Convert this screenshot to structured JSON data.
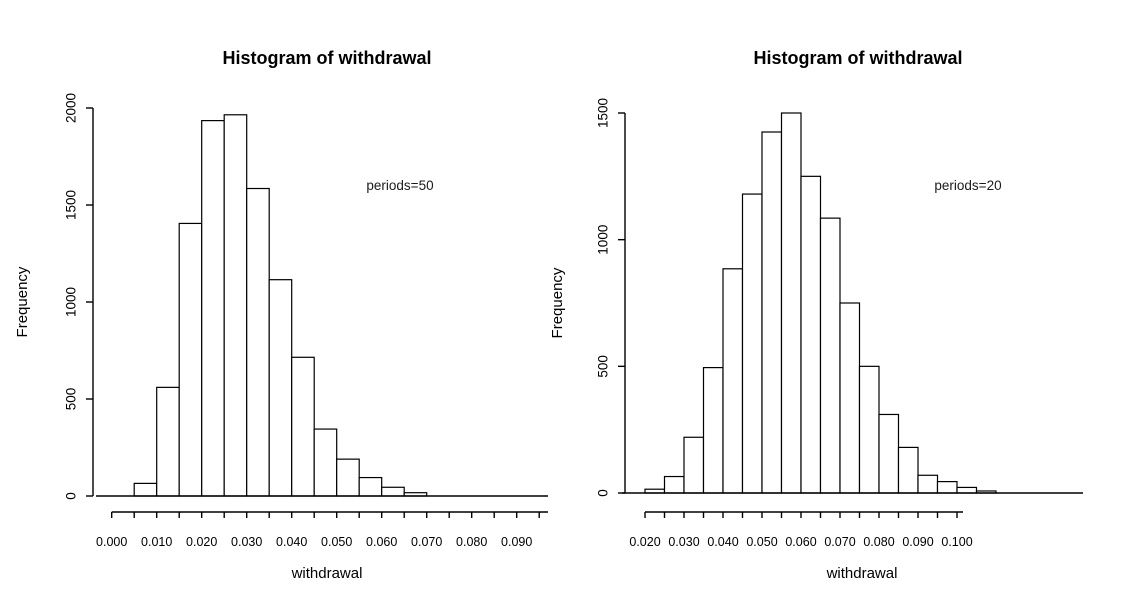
{
  "page": {
    "background": "#ffffff",
    "ink_color": "#000000"
  },
  "chart_data": [
    {
      "type": "bar",
      "subtype": "histogram",
      "title": "Histogram of withdrawal",
      "xlabel": "withdrawal",
      "ylabel": "Frequency",
      "annotation": "periods=50",
      "bin_start": 0.005,
      "bin_width": 0.005,
      "counts": [
        65,
        560,
        1405,
        1935,
        1965,
        1585,
        1115,
        715,
        345,
        190,
        95,
        45,
        17
      ],
      "bins": [
        {
          "from": 0.005,
          "to": 0.01,
          "count": 65
        },
        {
          "from": 0.01,
          "to": 0.015,
          "count": 560
        },
        {
          "from": 0.015,
          "to": 0.02,
          "count": 1405
        },
        {
          "from": 0.02,
          "to": 0.025,
          "count": 1935
        },
        {
          "from": 0.025,
          "to": 0.03,
          "count": 1965
        },
        {
          "from": 0.03,
          "to": 0.035,
          "count": 1585
        },
        {
          "from": 0.035,
          "to": 0.04,
          "count": 1115
        },
        {
          "from": 0.04,
          "to": 0.045,
          "count": 715
        },
        {
          "from": 0.045,
          "to": 0.05,
          "count": 345
        },
        {
          "from": 0.05,
          "to": 0.055,
          "count": 190
        },
        {
          "from": 0.055,
          "to": 0.06,
          "count": 95
        },
        {
          "from": 0.06,
          "to": 0.065,
          "count": 45
        },
        {
          "from": 0.065,
          "to": 0.07,
          "count": 17
        }
      ],
      "ylim": [
        0,
        2000
      ],
      "y_ticks": [
        0,
        500,
        1000,
        1500,
        2000
      ],
      "y_tick_labels": [
        "0",
        "500",
        "1000",
        "1500",
        "2000"
      ],
      "x_tick_step": 0.005,
      "x_tick_start": 0.0,
      "x_tick_end": 0.095,
      "x_tick_labels": [
        "0.000",
        "0.010",
        "0.020",
        "0.030",
        "0.040",
        "0.050",
        "0.060",
        "0.070",
        "0.080",
        "0.090"
      ],
      "bar_fill": "#ffffff",
      "bar_stroke": "#000000",
      "grid": false,
      "legend": null
    },
    {
      "type": "bar",
      "subtype": "histogram",
      "title": "Histogram of withdrawal",
      "xlabel": "withdrawal",
      "ylabel": "Frequency",
      "annotation": "periods=20",
      "bin_start": 0.02,
      "bin_width": 0.005,
      "counts": [
        15,
        65,
        220,
        495,
        885,
        1180,
        1425,
        1500,
        1250,
        1085,
        750,
        500,
        310,
        180,
        70,
        45,
        22,
        8
      ],
      "bins": [
        {
          "from": 0.02,
          "to": 0.025,
          "count": 15
        },
        {
          "from": 0.025,
          "to": 0.03,
          "count": 65
        },
        {
          "from": 0.03,
          "to": 0.035,
          "count": 220
        },
        {
          "from": 0.035,
          "to": 0.04,
          "count": 495
        },
        {
          "from": 0.04,
          "to": 0.045,
          "count": 885
        },
        {
          "from": 0.045,
          "to": 0.05,
          "count": 1180
        },
        {
          "from": 0.05,
          "to": 0.055,
          "count": 1425
        },
        {
          "from": 0.055,
          "to": 0.06,
          "count": 1500
        },
        {
          "from": 0.06,
          "to": 0.065,
          "count": 1250
        },
        {
          "from": 0.065,
          "to": 0.07,
          "count": 1085
        },
        {
          "from": 0.07,
          "to": 0.075,
          "count": 750
        },
        {
          "from": 0.075,
          "to": 0.08,
          "count": 500
        },
        {
          "from": 0.08,
          "to": 0.085,
          "count": 310
        },
        {
          "from": 0.085,
          "to": 0.09,
          "count": 180
        },
        {
          "from": 0.09,
          "to": 0.095,
          "count": 70
        },
        {
          "from": 0.095,
          "to": 0.1,
          "count": 45
        },
        {
          "from": 0.1,
          "to": 0.105,
          "count": 22
        },
        {
          "from": 0.105,
          "to": 0.11,
          "count": 8
        }
      ],
      "ylim": [
        0,
        1500
      ],
      "y_ticks": [
        0,
        500,
        1000,
        1500
      ],
      "y_tick_labels": [
        "0",
        "500",
        "1000",
        "1500"
      ],
      "x_tick_step": 0.005,
      "x_tick_start": 0.02,
      "x_tick_end": 0.1,
      "x_tick_labels": [
        "0.020",
        "0.030",
        "0.040",
        "0.050",
        "0.060",
        "0.070",
        "0.080",
        "0.090",
        "0.100"
      ],
      "bar_fill": "#ffffff",
      "bar_stroke": "#000000",
      "grid": false,
      "legend": null
    }
  ]
}
